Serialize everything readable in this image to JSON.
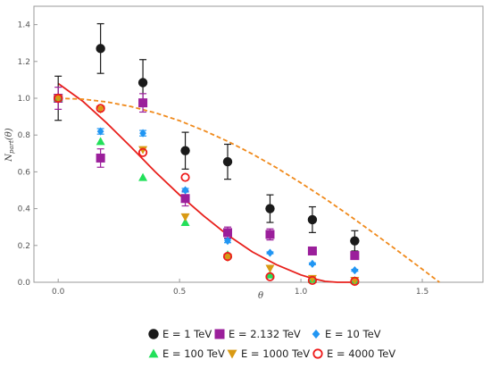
{
  "chart_data": {
    "type": "scatter",
    "xlabel": "θ",
    "ylabel": "N_part(θ)",
    "xlim": [
      -0.1,
      1.75
    ],
    "ylim": [
      0,
      1.5
    ],
    "x_ticks": [
      0,
      0.5,
      1.0,
      1.5
    ],
    "x_tick_labels": [
      "0.0",
      "0.5",
      "1.0",
      "1.5"
    ],
    "y_ticks": [
      0,
      0.2,
      0.4,
      0.6,
      0.8,
      1.0,
      1.2,
      1.4
    ],
    "y_tick_labels": [
      "0.0",
      "0.2",
      "0.4",
      "0.6",
      "0.8",
      "1.0",
      "1.2",
      "1.4"
    ],
    "grid": false,
    "legend_position": "bottom",
    "series": [
      {
        "name": "E = 1 TeV",
        "marker": "circle",
        "color": "#1a1a1a",
        "x": [
          0,
          0.1745,
          0.349,
          0.5236,
          0.6981,
          0.8727,
          1.0472,
          1.2217
        ],
        "y": [
          1.0,
          1.27,
          1.085,
          0.715,
          0.655,
          0.4,
          0.34,
          0.225
        ],
        "err": [
          0.12,
          0.135,
          0.125,
          0.1,
          0.095,
          0.075,
          0.07,
          0.055
        ]
      },
      {
        "name": "E = 2.132 TeV",
        "marker": "square",
        "color": "#9b1f9b",
        "x": [
          0,
          0.1745,
          0.349,
          0.5236,
          0.6981,
          0.8727,
          1.0472,
          1.2217
        ],
        "y": [
          1.0,
          0.675,
          0.975,
          0.455,
          0.27,
          0.26,
          0.17,
          0.145
        ],
        "err": [
          0.06,
          0.05,
          0.05,
          0.04,
          0.03,
          0.03,
          0.02,
          0.02
        ]
      },
      {
        "name": "E = 10 TeV",
        "marker": "diamond",
        "color": "#2196f3",
        "x": [
          0,
          0.1745,
          0.349,
          0.5236,
          0.6981,
          0.8727,
          1.0472,
          1.2217
        ],
        "y": [
          1.0,
          0.82,
          0.81,
          0.5,
          0.225,
          0.16,
          0.1,
          0.065
        ],
        "err": [
          0.01,
          0.015,
          0.015,
          0.01,
          0.01,
          0.005,
          0.005,
          0.005
        ]
      },
      {
        "name": "E = 100 TeV",
        "marker": "triangle-up",
        "color": "#22e05a",
        "x": [
          0,
          0.1745,
          0.349,
          0.5236,
          0.6981,
          0.8727,
          1.0472,
          1.2217
        ],
        "y": [
          1.0,
          0.765,
          0.57,
          0.325,
          0.15,
          0.04,
          0.015,
          0.01
        ],
        "err": [
          0,
          0,
          0,
          0,
          0,
          0,
          0,
          0
        ]
      },
      {
        "name": "E = 1000 TeV",
        "marker": "triangle-down",
        "color": "#d99a14",
        "x": [
          0,
          0.1745,
          0.349,
          0.5236,
          0.6981,
          0.8727,
          1.0472,
          1.2217
        ],
        "y": [
          1.0,
          0.94,
          0.72,
          0.355,
          0.135,
          0.075,
          0.02,
          0.01
        ],
        "err": [
          0,
          0,
          0,
          0,
          0,
          0,
          0,
          0
        ]
      },
      {
        "name": "E = 4000 TeV",
        "marker": "open-circle",
        "color": "#ee1c1c",
        "x": [
          0,
          0.1745,
          0.349,
          0.5236,
          0.6981,
          0.8727,
          1.0472,
          1.2217
        ],
        "y": [
          1.0,
          0.945,
          0.705,
          0.57,
          0.14,
          0.03,
          0.01,
          0.005
        ],
        "err": [
          0,
          0,
          0,
          0,
          0,
          0,
          0,
          0
        ]
      }
    ],
    "curves": [
      {
        "style": "solid",
        "color": "#e8201c",
        "x": [
          0,
          0.1,
          0.2,
          0.3,
          0.4,
          0.5,
          0.6,
          0.7,
          0.8,
          0.9,
          1.0,
          1.05,
          1.1,
          1.15,
          1.2,
          1.22
        ],
        "y": [
          1.08,
          0.985,
          0.865,
          0.735,
          0.6,
          0.475,
          0.36,
          0.255,
          0.165,
          0.095,
          0.04,
          0.02,
          0.005,
          0.0,
          0.0,
          0.0
        ]
      },
      {
        "style": "dashed",
        "color": "#f08a1c",
        "x": [
          0,
          0.1,
          0.2,
          0.3,
          0.4,
          0.5,
          0.6,
          0.7,
          0.8,
          0.9,
          1.0,
          1.1,
          1.2,
          1.3,
          1.4,
          1.5,
          1.571
        ],
        "y": [
          1.0,
          0.995,
          0.98,
          0.955,
          0.921,
          0.878,
          0.825,
          0.765,
          0.697,
          0.622,
          0.54,
          0.454,
          0.362,
          0.267,
          0.17,
          0.071,
          0.0
        ]
      }
    ]
  }
}
